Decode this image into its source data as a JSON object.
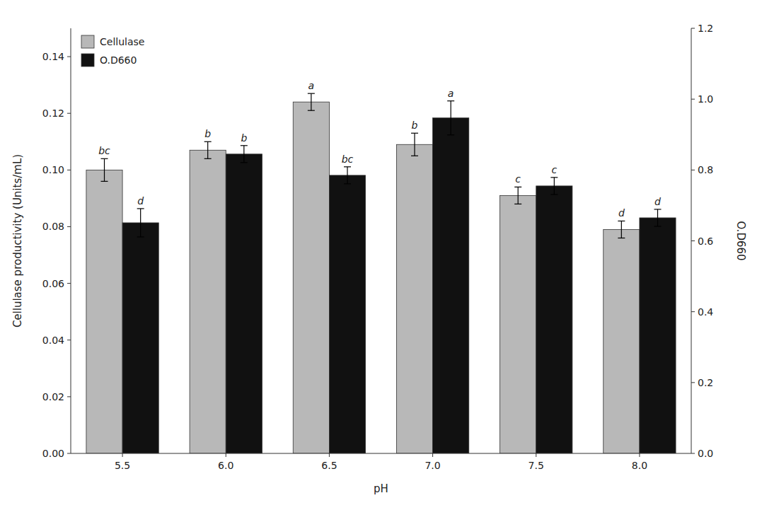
{
  "chart_data": {
    "type": "bar",
    "categories": [
      "5.5",
      "6.0",
      "6.5",
      "7.0",
      "7.5",
      "8.0"
    ],
    "xlabel": "pH",
    "ylabel": "Cellulase productivity (Units/mL)",
    "y2label": "O.D660",
    "series": [
      {
        "name": "Cellulase",
        "color": "#b8b8b8",
        "axis": "y",
        "values": [
          0.1,
          0.107,
          0.124,
          0.109,
          0.091,
          0.079
        ],
        "errors": [
          0.004,
          0.003,
          0.003,
          0.004,
          0.003,
          0.003
        ],
        "annotations": [
          "bc",
          "b",
          "a",
          "b",
          "c",
          "d"
        ]
      },
      {
        "name": "O.D660",
        "color": "#111111",
        "axis": "y2",
        "values": [
          0.651,
          0.845,
          0.785,
          0.947,
          0.755,
          0.665
        ],
        "errors": [
          0.04,
          0.024,
          0.024,
          0.048,
          0.024,
          0.024
        ],
        "annotations": [
          "d",
          "b",
          "bc",
          "a",
          "c",
          "d"
        ]
      }
    ],
    "ylim": [
      0,
      0.15
    ],
    "yticks": [
      {
        "value": 0,
        "label": "0.00"
      },
      0.02,
      0.04,
      0.06,
      0.08,
      {
        "value": 0.1,
        "label": "0.10"
      },
      0.12,
      0.14
    ],
    "y2lim": [
      0,
      1.2
    ],
    "y2ticks": [
      {
        "value": 0,
        "label": "0.0"
      },
      0.2,
      0.4,
      0.6,
      0.8,
      {
        "value": 1,
        "label": "1.0"
      },
      1.2
    ],
    "grid": false,
    "legend": "upper left"
  }
}
